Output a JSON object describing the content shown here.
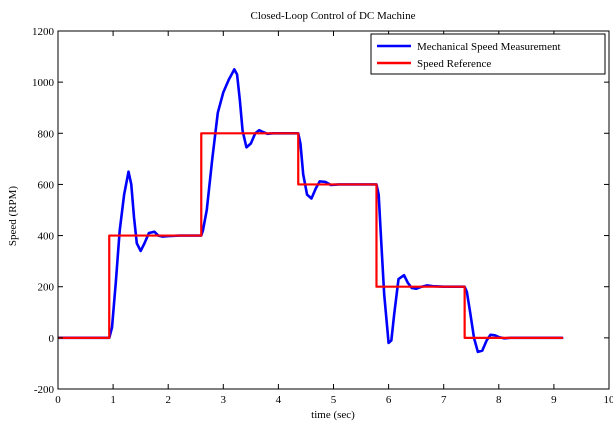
{
  "chart_data": {
    "type": "line",
    "title": "Closed-Loop Control of DC Machine",
    "xlabel": "time (sec)",
    "ylabel": "Speed (RPM)",
    "xlim": [
      0,
      10
    ],
    "ylim": [
      -200,
      1200
    ],
    "xticks": [
      0,
      1,
      2,
      3,
      4,
      5,
      6,
      7,
      8,
      9,
      10
    ],
    "yticks": [
      -200,
      0,
      200,
      400,
      600,
      800,
      1000,
      1200
    ],
    "grid": false,
    "legend_position": "top-right",
    "colors": {
      "measurement": "#0000ff",
      "reference": "#ff0000"
    },
    "series": [
      {
        "name": "Mechanical Speed Measurement",
        "color": "#0000ff",
        "x": [
          0,
          0.93,
          0.98,
          1.05,
          1.12,
          1.2,
          1.28,
          1.33,
          1.38,
          1.43,
          1.5,
          1.57,
          1.65,
          1.75,
          1.82,
          1.9,
          2.0,
          2.2,
          2.4,
          2.6,
          2.63,
          2.7,
          2.8,
          2.9,
          3.0,
          3.1,
          3.2,
          3.25,
          3.3,
          3.35,
          3.42,
          3.5,
          3.58,
          3.65,
          3.72,
          3.8,
          3.9,
          4.0,
          4.2,
          4.36,
          4.4,
          4.45,
          4.52,
          4.6,
          4.68,
          4.75,
          4.85,
          4.95,
          5.1,
          5.4,
          5.78,
          5.82,
          5.86,
          5.92,
          6.0,
          6.05,
          6.1,
          6.18,
          6.28,
          6.35,
          6.42,
          6.5,
          6.6,
          6.7,
          6.8,
          7.0,
          7.38,
          7.42,
          7.48,
          7.55,
          7.62,
          7.7,
          7.78,
          7.85,
          7.93,
          8.0,
          8.1,
          8.2,
          8.4,
          8.8,
          9.15
        ],
        "y": [
          0,
          0,
          40,
          220,
          420,
          560,
          650,
          600,
          470,
          370,
          340,
          370,
          410,
          415,
          400,
          396,
          398,
          400,
          400,
          400,
          420,
          500,
          700,
          880,
          960,
          1010,
          1050,
          1030,
          930,
          810,
          745,
          760,
          800,
          812,
          805,
          798,
          800,
          800,
          800,
          800,
          760,
          640,
          560,
          545,
          585,
          612,
          610,
          598,
          600,
          600,
          600,
          560,
          400,
          170,
          -20,
          -10,
          90,
          230,
          245,
          215,
          195,
          192,
          200,
          205,
          202,
          200,
          200,
          180,
          100,
          0,
          -55,
          -50,
          -10,
          12,
          10,
          3,
          -2,
          0,
          0,
          0,
          0
        ]
      },
      {
        "name": "Speed Reference",
        "color": "#ff0000",
        "x": [
          0,
          0.93,
          0.93,
          2.6,
          2.6,
          4.36,
          4.36,
          5.78,
          5.78,
          7.38,
          7.38,
          9.15
        ],
        "y": [
          0,
          0,
          400,
          400,
          800,
          800,
          600,
          600,
          200,
          200,
          0,
          0
        ]
      }
    ]
  }
}
